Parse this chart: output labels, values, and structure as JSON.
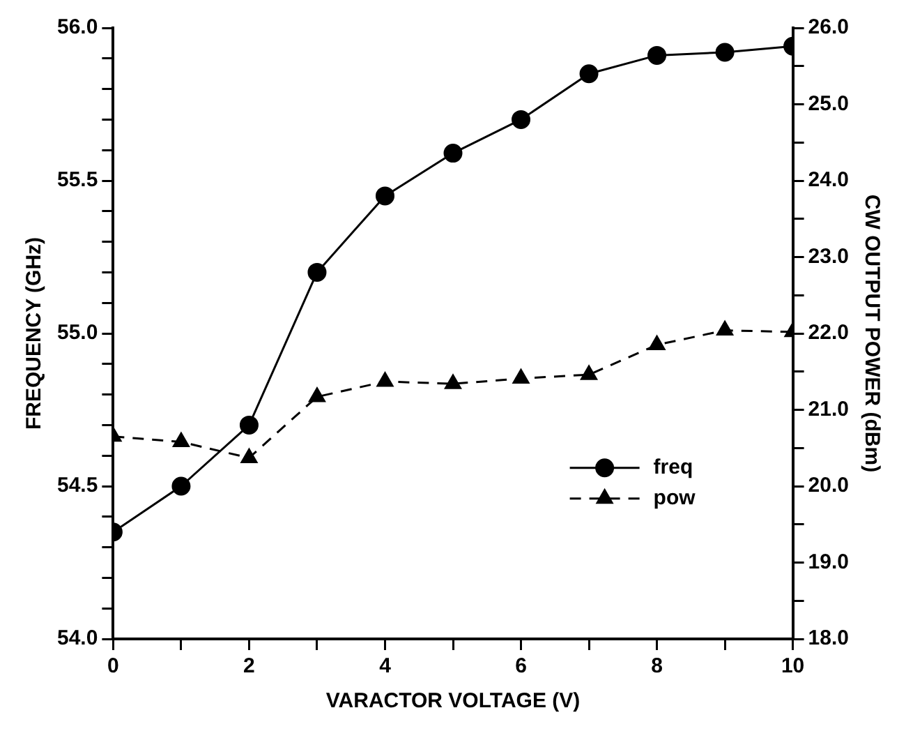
{
  "chart_data": {
    "type": "line",
    "xlabel": "VARACTOR VOLTAGE (V)",
    "ylabel": "FREQUENCY (GHz)",
    "y2label": "CW OUTPUT POWER (dBm)",
    "x": [
      0,
      1,
      2,
      3,
      4,
      5,
      6,
      7,
      8,
      9,
      10
    ],
    "series": [
      {
        "name": "freq",
        "color": "#000000",
        "marker": "circle",
        "line_style": "solid",
        "values": [
          54.35,
          54.5,
          54.7,
          55.2,
          55.45,
          55.59,
          55.7,
          55.85,
          55.91,
          55.92,
          55.94
        ]
      },
      {
        "name": "pow",
        "color": "#000000",
        "marker": "triangle",
        "line_style": "dashed",
        "axis": "y2",
        "values": [
          20.65,
          20.58,
          20.37,
          21.17,
          21.37,
          21.34,
          21.41,
          21.46,
          21.85,
          22.04,
          22.02
        ]
      }
    ],
    "xlim": [
      0,
      10
    ],
    "xticks": [
      0,
      {
        "value": 1,
        "label": null
      },
      2,
      {
        "value": 3,
        "label": null
      },
      4,
      {
        "value": 5,
        "label": null
      },
      6,
      {
        "value": 7,
        "label": null
      },
      8,
      {
        "value": 9,
        "label": null
      },
      10
    ],
    "ylim": [
      54,
      56
    ],
    "yticks": [
      {
        "value": 54,
        "label": "54.0"
      },
      {
        "value": 54.1,
        "label": null
      },
      {
        "value": 54.2,
        "label": null
      },
      {
        "value": 54.3,
        "label": null
      },
      {
        "value": 54.4,
        "label": null
      },
      {
        "value": 54.5,
        "label": "54.5"
      },
      {
        "value": 54.6,
        "label": null
      },
      {
        "value": 54.7,
        "label": null
      },
      {
        "value": 54.8,
        "label": null
      },
      {
        "value": 54.9,
        "label": null
      },
      {
        "value": 55,
        "label": "55.0"
      },
      {
        "value": 55.1,
        "label": null
      },
      {
        "value": 55.2,
        "label": null
      },
      {
        "value": 55.3,
        "label": null
      },
      {
        "value": 55.4,
        "label": null
      },
      {
        "value": 55.5,
        "label": "55.5"
      },
      {
        "value": 55.6,
        "label": null
      },
      {
        "value": 55.7,
        "label": null
      },
      {
        "value": 55.8,
        "label": null
      },
      {
        "value": 55.9,
        "label": null
      },
      {
        "value": 56,
        "label": "56.0"
      }
    ],
    "y2lim": [
      18,
      26
    ],
    "y2ticks": [
      {
        "value": 18,
        "label": "18.0"
      },
      {
        "value": 18.5,
        "label": null
      },
      {
        "value": 19,
        "label": "19.0"
      },
      {
        "value": 19.5,
        "label": null
      },
      {
        "value": 20,
        "label": "20.0"
      },
      {
        "value": 20.5,
        "label": null
      },
      {
        "value": 21,
        "label": "21.0"
      },
      {
        "value": 21.5,
        "label": null
      },
      {
        "value": 22,
        "label": "22.0"
      },
      {
        "value": 22.5,
        "label": null
      },
      {
        "value": 23,
        "label": "23.0"
      },
      {
        "value": 23.5,
        "label": null
      },
      {
        "value": 24,
        "label": "24.0"
      },
      {
        "value": 24.5,
        "label": null
      },
      {
        "value": 25,
        "label": "25.0"
      },
      {
        "value": 25.5,
        "label": null
      },
      {
        "value": 26,
        "label": "26.0"
      }
    ],
    "grid": false,
    "legend": "bottom right"
  }
}
